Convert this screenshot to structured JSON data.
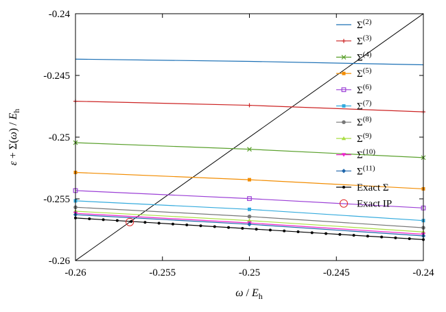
{
  "chart_data": {
    "type": "line",
    "xlabel_parts": {
      "omega": "ω",
      "sep": " / ",
      "E": "E",
      "sub": "h"
    },
    "ylabel_parts": {
      "eps": "ε",
      "plus": " + Σ(",
      "omega": "ω",
      "close": ") / ",
      "E": "E",
      "sub": "h"
    },
    "xlim": [
      -0.26,
      -0.24
    ],
    "ylim": [
      -0.26,
      -0.24
    ],
    "x_ticks": [
      -0.26,
      -0.255,
      -0.25,
      -0.245,
      -0.24
    ],
    "x_tick_labels": [
      "-0.26",
      "-0.255",
      "-0.25",
      "-0.245",
      "-0.24"
    ],
    "y_ticks": [
      -0.26,
      -0.255,
      -0.25,
      -0.245,
      -0.24
    ],
    "y_tick_labels": [
      "-0.26",
      "-0.255",
      "-0.25",
      "-0.245",
      "-0.24"
    ],
    "grid": false,
    "legend_position": "top-right",
    "series": [
      {
        "name_base": "Σ",
        "name_sup": "(2)",
        "color": "#1a6fb5",
        "marker": "none",
        "x": [
          -0.26,
          -0.25,
          -0.24
        ],
        "y": [
          -0.24368,
          -0.24386,
          -0.24414
        ]
      },
      {
        "name_base": "Σ",
        "name_sup": "(3)",
        "color": "#cc2222",
        "marker": "plus",
        "x": [
          -0.26,
          -0.25,
          -0.24
        ],
        "y": [
          -0.24709,
          -0.24742,
          -0.24795
        ]
      },
      {
        "name_base": "Σ",
        "name_sup": "(4)",
        "color": "#5aa02c",
        "marker": "cross",
        "x": [
          -0.26,
          -0.25,
          -0.24
        ],
        "y": [
          -0.25045,
          -0.25098,
          -0.25166
        ]
      },
      {
        "name_base": "Σ",
        "name_sup": "(5)",
        "color": "#f28c00",
        "marker": "square",
        "x": [
          -0.26,
          -0.25,
          -0.24
        ],
        "y": [
          -0.25286,
          -0.25345,
          -0.25419
        ]
      },
      {
        "name_base": "Σ",
        "name_sup": "(6)",
        "color": "#9b3fd6",
        "marker": "square-open",
        "x": [
          -0.26,
          -0.25,
          -0.24
        ],
        "y": [
          -0.25433,
          -0.25498,
          -0.25574
        ]
      },
      {
        "name_base": "Σ",
        "name_sup": "(7)",
        "color": "#33aadd",
        "marker": "square",
        "x": [
          -0.26,
          -0.25,
          -0.24
        ],
        "y": [
          -0.25516,
          -0.25585,
          -0.25676
        ]
      },
      {
        "name_base": "Σ",
        "name_sup": "(8)",
        "color": "#777777",
        "marker": "circle",
        "x": [
          -0.26,
          -0.25,
          -0.24
        ],
        "y": [
          -0.25568,
          -0.25643,
          -0.25734
        ]
      },
      {
        "name_base": "Σ",
        "name_sup": "(9)",
        "color": "#aadd44",
        "marker": "triangle",
        "x": [
          -0.26,
          -0.25,
          -0.24
        ],
        "y": [
          -0.256,
          -0.25676,
          -0.25768
        ]
      },
      {
        "name_base": "Σ",
        "name_sup": "(10)",
        "color": "#ee22cc",
        "marker": "triangle-down",
        "x": [
          -0.26,
          -0.25,
          -0.24
        ],
        "y": [
          -0.25617,
          -0.25695,
          -0.25787
        ]
      },
      {
        "name_base": "Σ",
        "name_sup": "(11)",
        "color": "#1f66aa",
        "marker": "diamond",
        "x": [
          -0.26,
          -0.25,
          -0.24
        ],
        "y": [
          -0.25628,
          -0.25706,
          -0.258
        ]
      },
      {
        "name_base": "Exact Σ",
        "name_sup": "",
        "color": "#000000",
        "marker": "dot",
        "x": [
          -0.26,
          -0.2592,
          -0.2584,
          -0.2576,
          -0.2568,
          -0.256,
          -0.2552,
          -0.2544,
          -0.2536,
          -0.2528,
          -0.252,
          -0.2512,
          -0.2504,
          -0.2496,
          -0.2488,
          -0.248,
          -0.2472,
          -0.2464,
          -0.2456,
          -0.2448,
          -0.244,
          -0.2432,
          -0.2424,
          -0.2416,
          -0.2408,
          -0.24
        ],
        "y": [
          -0.25655,
          -0.25662,
          -0.25669,
          -0.25676,
          -0.25683,
          -0.2569,
          -0.25697,
          -0.25704,
          -0.25711,
          -0.25718,
          -0.25725,
          -0.25732,
          -0.25739,
          -0.25746,
          -0.25753,
          -0.2576,
          -0.25767,
          -0.25774,
          -0.25781,
          -0.25788,
          -0.25795,
          -0.25802,
          -0.25809,
          -0.25816,
          -0.25823,
          -0.2583
        ]
      }
    ],
    "diagonal": {
      "color": "#000000",
      "x": [
        -0.26,
        -0.24
      ],
      "y": [
        -0.26,
        -0.24
      ]
    },
    "exact_ip": {
      "name": "Exact IP",
      "color": "#dd2222",
      "x": -0.25688,
      "y": -0.25688
    }
  }
}
